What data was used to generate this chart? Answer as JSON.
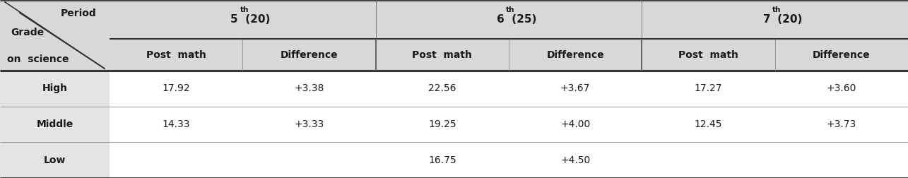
{
  "header_bg": "#d8d8d8",
  "body_bg": "#ffffff",
  "grade_col_bg": "#e4e4e4",
  "text_color": "#1a1a1a",
  "periods": [
    {
      "base": "5",
      "sup": "th",
      "rest": " (20)"
    },
    {
      "base": "6",
      "sup": "th",
      "rest": " (25)"
    },
    {
      "base": "7",
      "sup": "th",
      "rest": " (20)"
    }
  ],
  "sub_headers": [
    "Post  math",
    "Difference"
  ],
  "row_labels": [
    "High",
    "Middle",
    "Low"
  ],
  "data": [
    [
      "17.92",
      "+3.38",
      "22.56",
      "+3.67",
      "17.27",
      "+3.60"
    ],
    [
      "14.33",
      "+3.33",
      "19.25",
      "+4.00",
      "12.45",
      "+3.73"
    ],
    [
      "",
      "",
      "16.75",
      "+4.50",
      "",
      ""
    ]
  ],
  "corner_period": "Period",
  "corner_grade1": "Grade",
  "corner_grade2": "on  science",
  "figsize": [
    12.85,
    2.52
  ],
  "dpi": 100
}
